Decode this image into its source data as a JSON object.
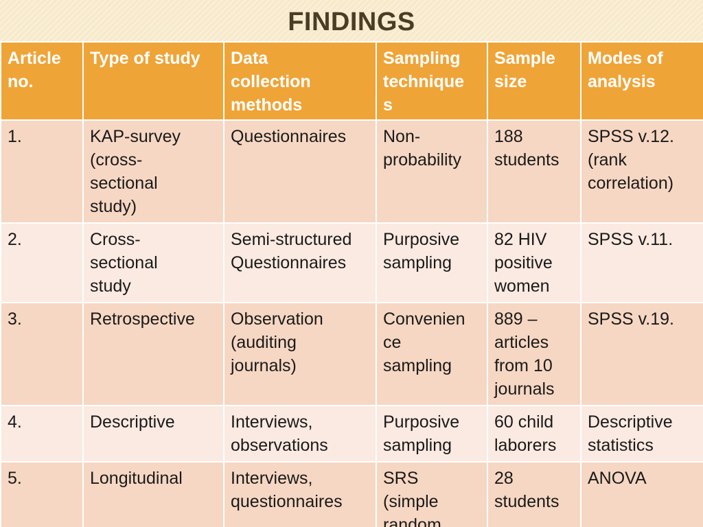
{
  "title": "FINDINGS",
  "table": {
    "headers": [
      "Article\nno.",
      "Type of study",
      "Data\ncollection\nmethods",
      "Sampling\ntechnique\ns",
      "Sample\nsize",
      "Modes of\nanalysis"
    ],
    "rows": [
      [
        "1.",
        "KAP-survey\n(cross-\nsectional\nstudy)",
        "Questionnaires",
        "Non-\nprobability",
        "188\nstudents",
        "SPSS v.12.\n(rank\ncorrelation)"
      ],
      [
        "2.",
        "Cross-\nsectional\nstudy",
        "Semi-structured\nQuestionnaires",
        "Purposive\nsampling",
        "82 HIV\npositive\nwomen",
        "SPSS v.11."
      ],
      [
        "3.",
        "Retrospective",
        "Observation\n(auditing\njournals)",
        "Convenien\nce\nsampling",
        "889 –\narticles\nfrom 10\njournals",
        "SPSS v.19."
      ],
      [
        "4.",
        "Descriptive",
        "Interviews,\nobservations",
        "Purposive\nsampling",
        "60 child\nlaborers",
        "Descriptive\nstatistics"
      ],
      [
        "5.",
        "Longitudinal",
        "Interviews,\nquestionnaires",
        "SRS\n(simple\nrandom",
        "28\nstudents",
        "ANOVA"
      ]
    ]
  }
}
